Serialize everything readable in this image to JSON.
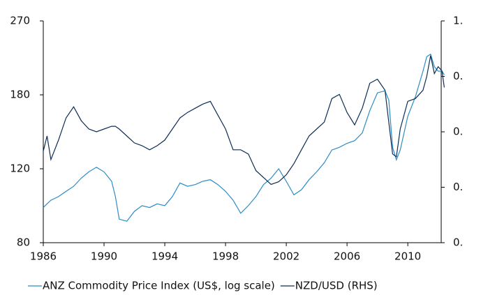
{
  "chart_data": {
    "type": "line",
    "x": [
      1986,
      1986.25,
      1986.5,
      1987,
      1987.5,
      1988,
      1988.5,
      1989,
      1989.5,
      1990,
      1990.5,
      1990.75,
      1991,
      1991.5,
      1992,
      1992.5,
      1993,
      1993.5,
      1994,
      1994.5,
      1995,
      1995.5,
      1996,
      1996.5,
      1997,
      1997.5,
      1998,
      1998.5,
      1999,
      1999.5,
      2000,
      2000.5,
      2001,
      2001.5,
      2002,
      2002.5,
      2003,
      2003.5,
      2004,
      2004.5,
      2005,
      2005.5,
      2006,
      2006.5,
      2007,
      2007.5,
      2008,
      2008.5,
      2008.75,
      2009,
      2009.25,
      2009.5,
      2010,
      2010.5,
      2011,
      2011.25,
      2011.5,
      2011.75,
      2012,
      2012.25,
      2012.4
    ],
    "series": [
      {
        "name": "ANZ Commodity Price Index (US$, log scale)",
        "color": "#2b8cc4",
        "values": [
          97,
          99,
          101,
          103,
          106,
          109,
          114,
          118,
          121,
          118,
          112,
          103,
          91,
          90,
          95,
          98,
          97,
          99,
          98,
          103,
          111,
          109,
          110,
          112,
          113,
          110,
          106,
          101,
          94,
          98,
          103,
          110,
          114,
          120,
          112,
          104,
          107,
          113,
          118,
          124,
          133,
          135,
          138,
          140,
          146,
          165,
          182,
          184,
          175,
          135,
          126,
          133,
          160,
          178,
          205,
          222,
          225,
          210,
          205,
          205,
          201
        ]
      },
      {
        "name": "NZD/USD (RHS)",
        "color": "#0d2d55",
        "axis": "y2",
        "values": [
          0.53,
          0.585,
          0.5,
          0.57,
          0.65,
          0.69,
          0.64,
          0.61,
          0.6,
          0.61,
          0.62,
          0.62,
          0.61,
          0.585,
          0.56,
          0.55,
          0.535,
          0.55,
          0.57,
          0.61,
          0.65,
          0.67,
          0.685,
          0.7,
          0.71,
          0.66,
          0.61,
          0.535,
          0.535,
          0.52,
          0.46,
          0.435,
          0.41,
          0.42,
          0.445,
          0.485,
          0.535,
          0.585,
          0.61,
          0.635,
          0.72,
          0.735,
          0.67,
          0.625,
          0.685,
          0.775,
          0.79,
          0.75,
          0.635,
          0.52,
          0.51,
          0.61,
          0.71,
          0.72,
          0.75,
          0.8,
          0.875,
          0.81,
          0.835,
          0.82,
          0.76
        ]
      }
    ],
    "xlim": [
      1986,
      2012.2
    ],
    "xticks": [
      1986,
      1990,
      1994,
      1998,
      2002,
      2006,
      2010
    ],
    "ylim": [
      80,
      270
    ],
    "yticks": [
      80,
      120,
      180,
      270
    ],
    "ylog": true,
    "y2lim": [
      0.2,
      1
    ],
    "y2ticks": [
      {
        "value": 1,
        "label": "1."
      },
      {
        "value": 0.8,
        "label": "0."
      },
      {
        "value": 0.6,
        "label": "0."
      },
      {
        "value": 0.4,
        "label": "0."
      },
      {
        "value": 0.2,
        "label": "0."
      }
    ],
    "legend": "bottom"
  }
}
